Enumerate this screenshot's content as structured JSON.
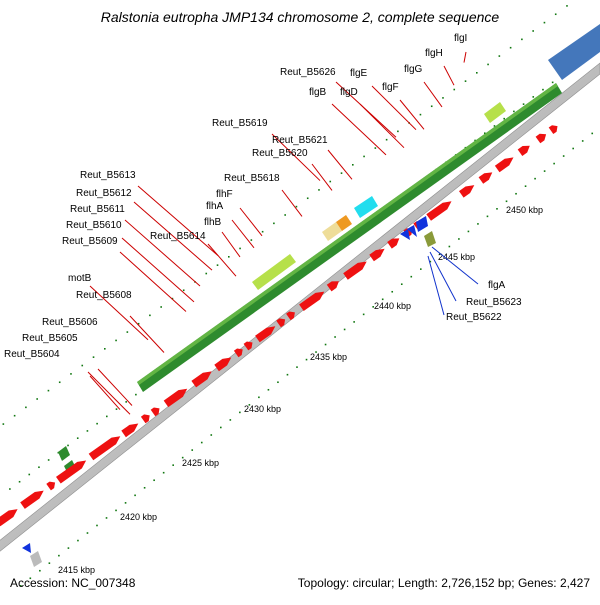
{
  "title": "Ralstonia eutropha JMP134 chromosome 2, complete sequence",
  "footer": {
    "accession": "Accession: NC_007348",
    "summary": "Topology: circular; Length: 2,726,152 bp; Genes: 2,427"
  },
  "colors": {
    "gene_red": "#ee1111",
    "gene_green": "#2e8b2e",
    "gene_lightgreen": "#99dd33",
    "gene_blue": "#1133dd",
    "label_red": "#cc0000",
    "label_blue": "#1133cc",
    "axis": "#a0a0a0",
    "tick": "#117711"
  },
  "scale_labels": [
    "2415 kbp",
    "2420 kbp",
    "2425 kbp",
    "2430 kbp",
    "2435 kbp",
    "2440 kbp",
    "2445 kbp",
    "2450 kbp"
  ],
  "gene_labels_red": [
    "Reut_B5604",
    "Reut_B5605",
    "Reut_B5606",
    "motB",
    "Reut_B5608",
    "Reut_B5609",
    "Reut_B5610",
    "Reut_B5611",
    "Reut_B5612",
    "Reut_B5613",
    "Reut_B5614",
    "flhB",
    "flhA",
    "flhF",
    "Reut_B5618",
    "Reut_B5619",
    "Reut_B5620",
    "Reut_B5621",
    "flgB",
    "Reut_B5626",
    "flgD",
    "flgE",
    "flgF",
    "flgG",
    "flgH",
    "flgI"
  ],
  "gene_labels_blue": [
    "flgA",
    "Reut_B5623",
    "Reut_B5622"
  ]
}
